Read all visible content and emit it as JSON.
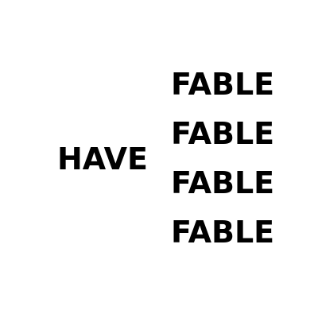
{
  "left_word": "HAVE",
  "right_words": [
    "FABLE",
    "FABLE",
    "FABLE",
    "FABLE"
  ],
  "colors": {
    "background": "#ffffff",
    "text": "#000000"
  }
}
